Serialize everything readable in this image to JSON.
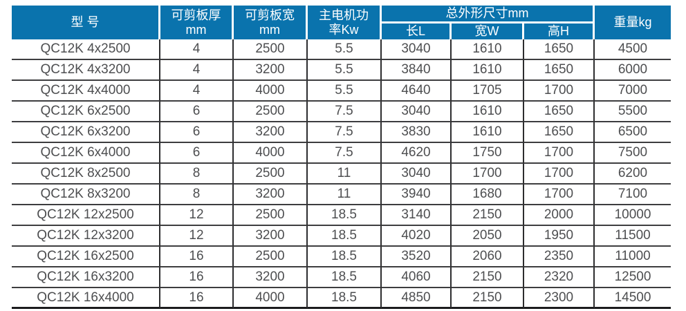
{
  "table": {
    "title_semantic": "QC12K shearing machine specification table",
    "header": {
      "model": "型 号",
      "thickness_label": "可剪板厚",
      "thickness_unit": "mm",
      "sheet_width_label": "可剪板宽",
      "sheet_width_unit": "mm",
      "power_line1": "主电机功",
      "power_line2": "率Kw",
      "dimensions": "总外形尺寸mm",
      "length": "长L",
      "width": "宽W",
      "height": "高H",
      "weight": "重量kg"
    },
    "columns_order": [
      "model",
      "thickness_mm",
      "sheet_width_mm",
      "motor_power_kw",
      "length_mm",
      "width_mm",
      "height_mm",
      "weight_kg"
    ],
    "rows": [
      [
        "QC12K 4x2500",
        "4",
        "2500",
        "5.5",
        "3040",
        "1610",
        "1650",
        "4500"
      ],
      [
        "QC12K 4x3200",
        "4",
        "3200",
        "5.5",
        "3840",
        "1610",
        "1650",
        "6000"
      ],
      [
        "QC12K 4x4000",
        "4",
        "4000",
        "5.5",
        "4640",
        "1705",
        "1700",
        "7000"
      ],
      [
        "QC12K 6x2500",
        "6",
        "2500",
        "7.5",
        "3040",
        "1610",
        "1650",
        "5500"
      ],
      [
        "QC12K 6x3200",
        "6",
        "3200",
        "7.5",
        "3830",
        "1610",
        "1650",
        "6500"
      ],
      [
        "QC12K 6x4000",
        "6",
        "4000",
        "7.5",
        "4620",
        "1750",
        "1700",
        "7500"
      ],
      [
        "QC12K 8x2500",
        "8",
        "2500",
        "11",
        "3040",
        "1700",
        "1700",
        "6200"
      ],
      [
        "QC12K 8x3200",
        "8",
        "3200",
        "11",
        "3940",
        "1680",
        "1700",
        "7100"
      ],
      [
        "QC12K 12x2500",
        "12",
        "2500",
        "18.5",
        "3140",
        "2150",
        "2000",
        "10000"
      ],
      [
        "QC12K 12x3200",
        "12",
        "3200",
        "18.5",
        "4020",
        "2050",
        "1950",
        "11500"
      ],
      [
        "QC12K 16x2500",
        "16",
        "2500",
        "18.5",
        "3520",
        "2060",
        "2350",
        "11000"
      ],
      [
        "QC12K 16x3200",
        "16",
        "3200",
        "18.5",
        "4060",
        "2150",
        "2320",
        "12500"
      ],
      [
        "QC12K 16x4000",
        "16",
        "4000",
        "18.5",
        "4850",
        "2150",
        "2300",
        "14500"
      ]
    ]
  },
  "colors": {
    "header_bg": "#0a73ad",
    "header_text": "#ffffff",
    "body_text": "#4d4e50",
    "row_line": "#3d3d3f",
    "column_line": "#2c2c2e",
    "bottom_line": "#1b1b1d",
    "background": "#ffffff"
  }
}
